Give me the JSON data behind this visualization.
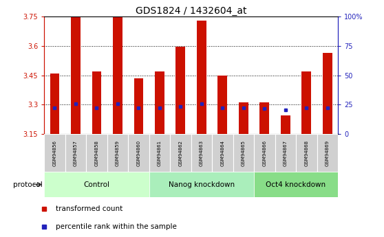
{
  "title": "GDS1824 / 1432604_at",
  "samples": [
    "GSM94856",
    "GSM94857",
    "GSM94858",
    "GSM94859",
    "GSM94860",
    "GSM94861",
    "GSM94862",
    "GSM94863",
    "GSM94864",
    "GSM94865",
    "GSM94866",
    "GSM94867",
    "GSM94868",
    "GSM94869"
  ],
  "bar_values": [
    3.46,
    3.75,
    3.47,
    3.75,
    3.435,
    3.47,
    3.595,
    3.73,
    3.45,
    3.31,
    3.31,
    3.245,
    3.47,
    3.565
  ],
  "dot_values": [
    3.284,
    3.305,
    3.284,
    3.306,
    3.284,
    3.284,
    3.292,
    3.305,
    3.284,
    3.283,
    3.28,
    3.274,
    3.283,
    3.284
  ],
  "ymin": 3.15,
  "ymax": 3.75,
  "yticks": [
    3.15,
    3.3,
    3.45,
    3.6,
    3.75
  ],
  "ytick_labels": [
    "3.15",
    "3.3",
    "3.45",
    "3.6",
    "3.75"
  ],
  "right_ytick_pcts": [
    0,
    25,
    50,
    75,
    100
  ],
  "right_ytick_labels": [
    "0",
    "25",
    "50",
    "75",
    "100%"
  ],
  "bar_color": "#CC1100",
  "dot_color": "#2222BB",
  "groups": [
    {
      "label": "Control",
      "start": 0,
      "end": 5,
      "color": "#ccffcc"
    },
    {
      "label": "Nanog knockdown",
      "start": 5,
      "end": 10,
      "color": "#aaeebb"
    },
    {
      "label": "Oct4 knockdown",
      "start": 10,
      "end": 14,
      "color": "#88dd88"
    }
  ],
  "protocol_label": "protocol",
  "legend_items": [
    {
      "label": "transformed count",
      "color": "#CC1100"
    },
    {
      "label": "percentile rank within the sample",
      "color": "#2222BB"
    }
  ],
  "bar_width": 0.45,
  "title_fontsize": 10,
  "tick_fontsize": 7,
  "sample_fontsize": 5.0,
  "proto_fontsize": 7.5,
  "legend_fontsize": 7.5,
  "xlabels_bg": "#d0d0d0",
  "tick_color_left": "#CC1100",
  "tick_color_right": "#2222BB"
}
